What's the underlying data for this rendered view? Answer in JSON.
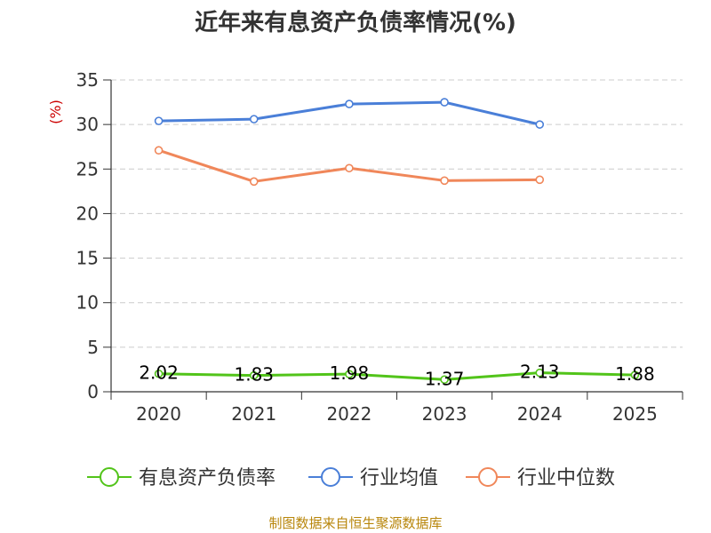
{
  "chart_data": {
    "type": "line",
    "title": "近年来有息资产负债率情况(%)",
    "ylabel": "(%)",
    "xlabel": "",
    "categories": [
      "2020",
      "2021",
      "2022",
      "2023",
      "2024",
      "2025"
    ],
    "ylim": [
      0,
      35
    ],
    "yticks": [
      0,
      5,
      10,
      15,
      20,
      25,
      30,
      35
    ],
    "grid": "horizontal dashed",
    "legend_position": "bottom",
    "series": [
      {
        "name": "有息资产负债率",
        "color": "#52c41a",
        "values": [
          2.02,
          1.83,
          1.98,
          1.37,
          2.13,
          1.88
        ],
        "labels": [
          "2.02",
          "1.83",
          "1.98",
          "1.37",
          "2.13",
          "1.88"
        ]
      },
      {
        "name": "行业均值",
        "color": "#4a7fd8",
        "values": [
          30.4,
          30.6,
          32.3,
          32.5,
          30.0,
          null
        ]
      },
      {
        "name": "行业中位数",
        "color": "#f0875a",
        "values": [
          27.1,
          23.6,
          25.1,
          23.7,
          23.8,
          null
        ]
      }
    ],
    "source": "制图数据来自恒生聚源数据库"
  }
}
